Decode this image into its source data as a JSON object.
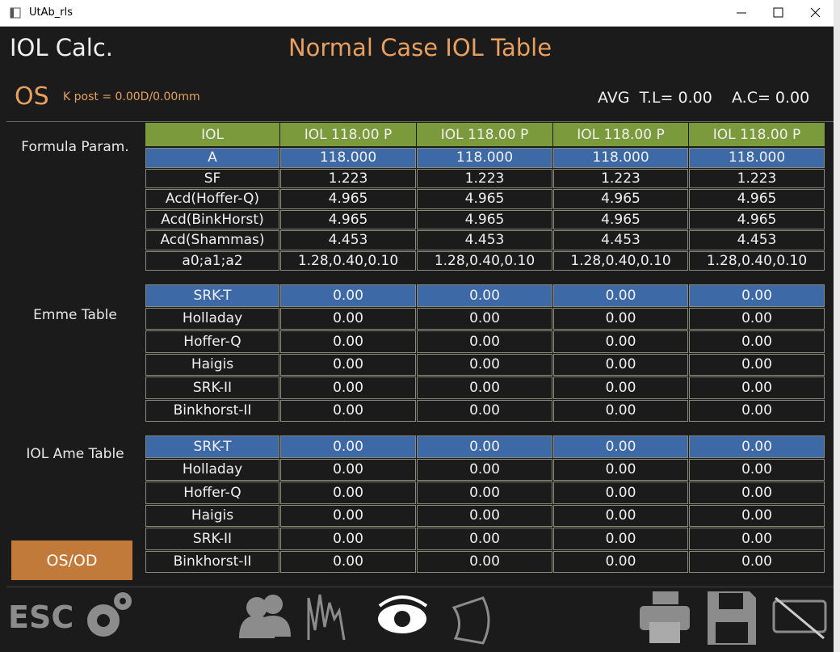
{
  "window": {
    "title": "UtAb_rls"
  },
  "header": {
    "app": "IOL Calc.",
    "title": "Normal Case IOL Table",
    "eye": "OS",
    "k_post": "K post = 0.00D/0.00mm",
    "avg_tl": "AVG  T.L= 0.00",
    "ac": "A.C= 0.00"
  },
  "sections": [
    {
      "label": "Formula Param.",
      "header": [
        "IOL",
        "IOL 118.00 P",
        "IOL 118.00 P",
        "IOL 118.00 P",
        "IOL 118.00 P"
      ],
      "rows": [
        [
          "A",
          "118.000",
          "118.000",
          "118.000",
          "118.000"
        ],
        [
          "SF",
          "1.223",
          "1.223",
          "1.223",
          "1.223"
        ],
        [
          "Acd(Hoffer-Q)",
          "4.965",
          "4.965",
          "4.965",
          "4.965"
        ],
        [
          "Acd(BinkHorst)",
          "4.965",
          "4.965",
          "4.965",
          "4.965"
        ],
        [
          "Acd(Shammas)",
          "4.453",
          "4.453",
          "4.453",
          "4.453"
        ],
        [
          "a0;a1;a2",
          "1.28,0.40,0.10",
          "1.28,0.40,0.10",
          "1.28,0.40,0.10",
          "1.28,0.40,0.10"
        ]
      ]
    },
    {
      "label": "Emme Table",
      "rows": [
        [
          "SRK-T",
          "0.00",
          "0.00",
          "0.00",
          "0.00"
        ],
        [
          "Holladay",
          "0.00",
          "0.00",
          "0.00",
          "0.00"
        ],
        [
          "Hoffer-Q",
          "0.00",
          "0.00",
          "0.00",
          "0.00"
        ],
        [
          "Haigis",
          "0.00",
          "0.00",
          "0.00",
          "0.00"
        ],
        [
          "SRK-II",
          "0.00",
          "0.00",
          "0.00",
          "0.00"
        ],
        [
          "Binkhorst-II",
          "0.00",
          "0.00",
          "0.00",
          "0.00"
        ]
      ]
    },
    {
      "label": "IOL Ame Table",
      "rows": [
        [
          "SRK-T",
          "0.00",
          "0.00",
          "0.00",
          "0.00"
        ],
        [
          "Holladay",
          "0.00",
          "0.00",
          "0.00",
          "0.00"
        ],
        [
          "Hoffer-Q",
          "0.00",
          "0.00",
          "0.00",
          "0.00"
        ],
        [
          "Haigis",
          "0.00",
          "0.00",
          "0.00",
          "0.00"
        ],
        [
          "SRK-II",
          "0.00",
          "0.00",
          "0.00",
          "0.00"
        ],
        [
          "Binkhorst-II",
          "0.00",
          "0.00",
          "0.00",
          "0.00"
        ]
      ]
    }
  ],
  "buttons": {
    "os_od": "OS/OD",
    "esc": "ESC"
  }
}
